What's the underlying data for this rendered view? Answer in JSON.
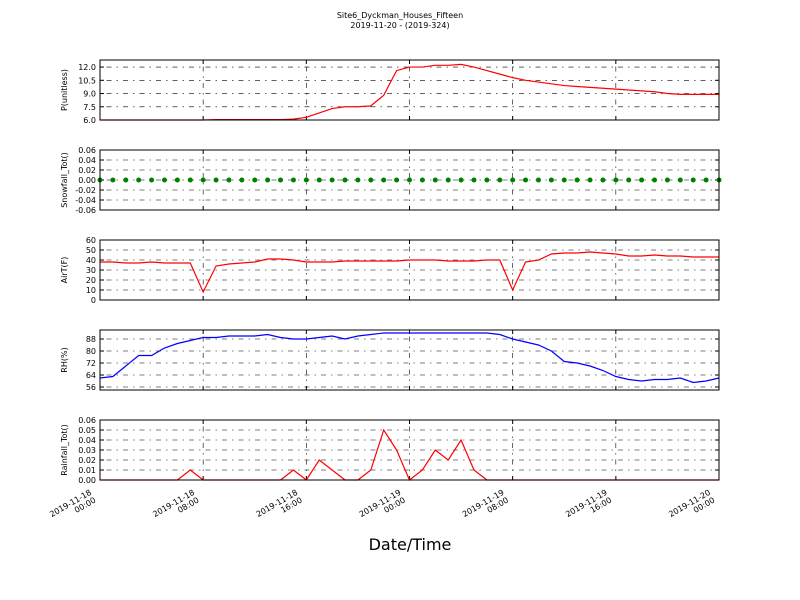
{
  "title": "Site6_Dyckman_Houses_Fifteen",
  "subtitle": "2019-11-20 - (2019-324)",
  "xlabel": "Date/Time",
  "xlim": [
    "2019-11-18 00:00",
    "2019-11-20 00:00"
  ],
  "xticks": [
    {
      "value": "2019-11-18 00:00",
      "label": "2019-11-18\n00:00"
    },
    {
      "value": "2019-11-18 08:00",
      "label": "2019-11-18\n08:00"
    },
    {
      "value": "2019-11-18 16:00",
      "label": "2019-11-18\n16:00"
    },
    {
      "value": "2019-11-19 00:00",
      "label": "2019-11-19\n00:00"
    },
    {
      "value": "2019-11-19 08:00",
      "label": "2019-11-19\n08:00"
    },
    {
      "value": "2019-11-19 16:00",
      "label": "2019-11-19\n16:00"
    },
    {
      "value": "2019-11-20 00:00",
      "label": "2019-11-20\n00:00"
    }
  ],
  "x": [
    "2019-11-18 00:00",
    "2019-11-18 01:00",
    "2019-11-18 02:00",
    "2019-11-18 03:00",
    "2019-11-18 04:00",
    "2019-11-18 05:00",
    "2019-11-18 06:00",
    "2019-11-18 07:00",
    "2019-11-18 08:00",
    "2019-11-18 09:00",
    "2019-11-18 10:00",
    "2019-11-18 11:00",
    "2019-11-18 12:00",
    "2019-11-18 13:00",
    "2019-11-18 14:00",
    "2019-11-18 15:00",
    "2019-11-18 16:00",
    "2019-11-18 17:00",
    "2019-11-18 18:00",
    "2019-11-18 19:00",
    "2019-11-18 20:00",
    "2019-11-18 21:00",
    "2019-11-18 22:00",
    "2019-11-18 23:00",
    "2019-11-19 00:00",
    "2019-11-19 01:00",
    "2019-11-19 02:00",
    "2019-11-19 03:00",
    "2019-11-19 04:00",
    "2019-11-19 05:00",
    "2019-11-19 06:00",
    "2019-11-19 07:00",
    "2019-11-19 08:00",
    "2019-11-19 09:00",
    "2019-11-19 10:00",
    "2019-11-19 11:00",
    "2019-11-19 12:00",
    "2019-11-19 13:00",
    "2019-11-19 14:00",
    "2019-11-19 15:00",
    "2019-11-19 16:00",
    "2019-11-19 17:00",
    "2019-11-19 18:00",
    "2019-11-19 19:00",
    "2019-11-19 20:00",
    "2019-11-19 21:00",
    "2019-11-19 22:00",
    "2019-11-19 23:00",
    "2019-11-20 00:00"
  ],
  "chart_data": [
    {
      "type": "line",
      "ylabel": "P(unitless)",
      "color": "#ff0000",
      "ylim": [
        6,
        12.8
      ],
      "yticks": [
        {
          "value": 6,
          "label": "6.0"
        },
        {
          "value": 7.5,
          "label": "7.5"
        },
        {
          "value": 9,
          "label": "9.0"
        },
        {
          "value": 10.5,
          "label": "10.5"
        },
        {
          "value": 12,
          "label": "12.0"
        }
      ],
      "values": [
        6.0,
        6.0,
        6.0,
        6.0,
        6.0,
        6.0,
        6.0,
        6.0,
        6.0,
        6.05,
        6.05,
        6.05,
        6.05,
        6.05,
        6.05,
        6.1,
        6.3,
        6.8,
        7.3,
        7.5,
        7.5,
        7.6,
        8.8,
        11.6,
        12.0,
        12.0,
        12.2,
        12.2,
        12.3,
        12.0,
        11.6,
        11.2,
        10.8,
        10.5,
        10.3,
        10.1,
        9.9,
        9.8,
        9.7,
        9.6,
        9.5,
        9.4,
        9.3,
        9.2,
        9.0,
        8.9,
        8.9,
        8.9,
        8.9
      ]
    },
    {
      "type": "scatter",
      "ylabel": "Snowfall_Tot()",
      "color": "#008000",
      "ylim": [
        -0.06,
        0.06
      ],
      "yticks": [
        -0.06,
        -0.04,
        -0.02,
        {
          "value": 0,
          "label": "0.00"
        },
        0.02,
        0.04,
        0.06
      ],
      "values": [
        0,
        0,
        0,
        0,
        0,
        0,
        0,
        0,
        0,
        0,
        0,
        0,
        0,
        0,
        0,
        0,
        0,
        0,
        0,
        0,
        0,
        0,
        0,
        0,
        0,
        0,
        0,
        0,
        0,
        0,
        0,
        0,
        0,
        0,
        0,
        0,
        0,
        0,
        0,
        0,
        0,
        0,
        0,
        0,
        0,
        0,
        0,
        0,
        0
      ]
    },
    {
      "type": "line",
      "ylabel": "AirT(F)",
      "color": "#ff0000",
      "ylim": [
        0,
        60
      ],
      "yticks": [
        0,
        10,
        20,
        30,
        40,
        50,
        60
      ],
      "values": [
        38,
        38,
        37,
        37,
        38,
        37,
        37,
        37,
        8,
        34,
        36,
        37,
        38,
        41,
        41,
        40,
        38,
        38,
        38,
        39,
        39,
        39,
        39,
        39,
        40,
        40,
        40,
        39,
        39,
        39,
        40,
        40,
        10,
        38,
        40,
        46,
        47,
        47,
        48,
        47,
        46,
        44,
        44,
        45,
        44,
        44,
        43,
        43,
        43
      ]
    },
    {
      "type": "line",
      "ylabel": "RH(%)",
      "color": "#0000ff",
      "ylim": [
        54,
        94
      ],
      "yticks": [
        56,
        64,
        72,
        80,
        88
      ],
      "values": [
        62,
        63,
        70,
        77,
        77,
        82,
        85,
        87,
        89,
        89,
        90,
        90,
        90,
        91,
        89,
        88,
        88,
        89,
        90,
        88,
        90,
        91,
        92,
        92,
        92,
        92,
        92,
        92,
        92,
        92,
        92,
        91,
        88,
        86,
        84,
        80,
        73,
        72,
        70,
        67,
        63,
        61,
        60,
        61,
        61,
        62,
        59,
        60,
        62
      ]
    },
    {
      "type": "line",
      "ylabel": "Rainfall_Tot()",
      "color": "#ff0000",
      "ylim": [
        0,
        0.06
      ],
      "yticks": [
        {
          "value": 0,
          "label": "0.00"
        },
        0.01,
        0.02,
        0.03,
        0.04,
        0.05,
        0.06
      ],
      "values": [
        0,
        0,
        0,
        0,
        0,
        0,
        0,
        0.01,
        0,
        0,
        0,
        0,
        0,
        0,
        0,
        0.01,
        0,
        0.02,
        0.01,
        0,
        0,
        0.01,
        0.05,
        0.03,
        0,
        0.01,
        0.03,
        0.02,
        0.04,
        0.01,
        0,
        0,
        0,
        0,
        0,
        0,
        0,
        0,
        0,
        0,
        0,
        0,
        0,
        0,
        0,
        0,
        0,
        0,
        0
      ]
    }
  ]
}
